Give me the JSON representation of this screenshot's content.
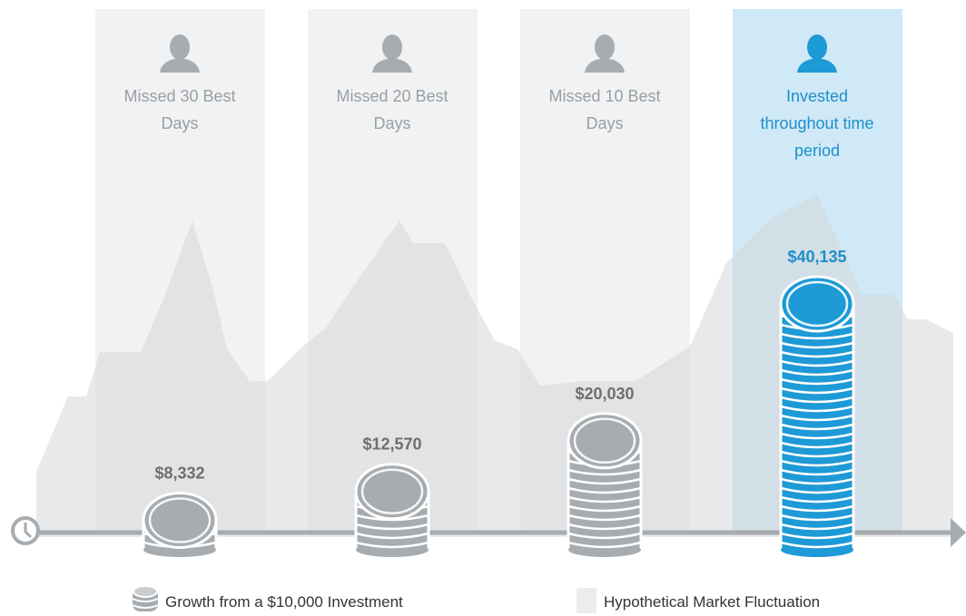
{
  "chart_data": {
    "type": "bar",
    "categories": [
      "Missed 30 Best Days",
      "Missed 20 Best Days",
      "Missed 10 Best Days",
      "Invested throughout time period"
    ],
    "values": [
      8332,
      12570,
      20030,
      40135
    ],
    "value_labels": [
      "$8,332",
      "$12,570",
      "$20,030",
      "$40,135"
    ],
    "colors": [
      "#a7acb0",
      "#a7acb0",
      "#a7acb0",
      "#1e9ad6"
    ],
    "label_colors": [
      "#6d6e70",
      "#6d6e70",
      "#6d6e70",
      "#1e8fcc"
    ],
    "panel_colors": [
      "#f1f2f3",
      "#f1f2f3",
      "#f1f2f3",
      "#cfe9f6"
    ],
    "legend": [
      "Growth from a $10,000 Investment",
      "Hypothetical Market Fluctuation"
    ]
  }
}
